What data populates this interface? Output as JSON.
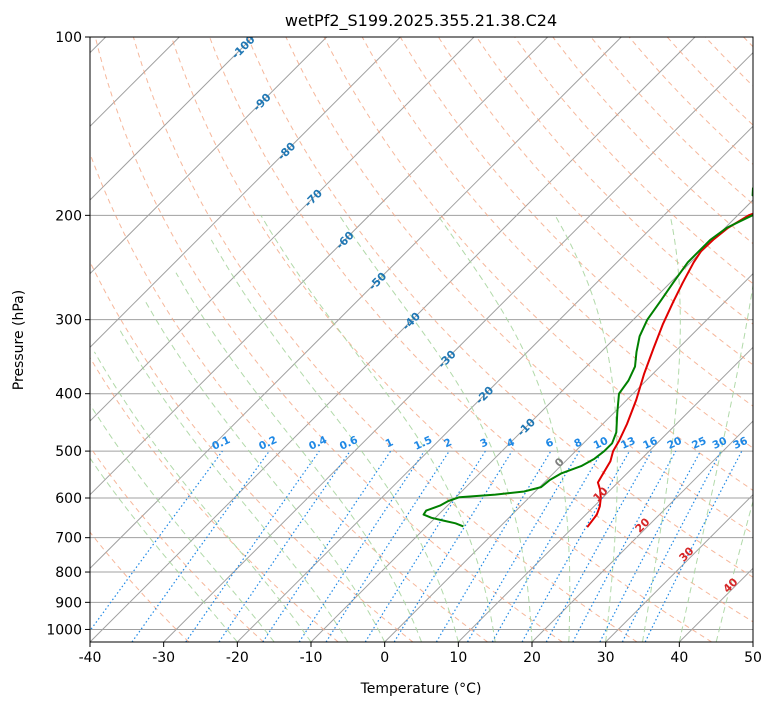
{
  "chart_data": {
    "type": "line",
    "title": "wetPf2_S199.2025.355.21.38.C24",
    "xlabel": "Temperature (°C)",
    "ylabel": "Pressure (hPa)",
    "xlim": [
      -40,
      50
    ],
    "ylim": [
      1050,
      100
    ],
    "x_ticks": [
      "-40",
      "-30",
      "-20",
      "-10",
      "0",
      "10",
      "20",
      "30",
      "40",
      "50"
    ],
    "y_ticks": [
      "100",
      "200",
      "300",
      "400",
      "500",
      "600",
      "700",
      "800",
      "900",
      "1000"
    ],
    "series": [
      {
        "name": "temperature",
        "color": "#e00000",
        "points": [
          [
            11.9,
            672
          ],
          [
            11.5,
            640
          ],
          [
            10.8,
            620
          ],
          [
            9.8,
            600
          ],
          [
            8.5,
            580
          ],
          [
            7.3,
            565
          ],
          [
            6.9,
            550
          ],
          [
            6.1,
            520
          ],
          [
            5.1,
            500
          ],
          [
            4.5,
            480
          ],
          [
            3.3,
            450
          ],
          [
            1.3,
            410
          ],
          [
            -1.2,
            370
          ],
          [
            -3.4,
            335
          ],
          [
            -5.4,
            305
          ],
          [
            -7.0,
            280
          ],
          [
            -8.3,
            260
          ],
          [
            -9.6,
            240
          ],
          [
            -10.1,
            230
          ],
          [
            -10.0,
            220
          ],
          [
            -9.6,
            210
          ],
          [
            -8.5,
            200
          ],
          [
            -7.0,
            195
          ],
          [
            -2.0,
            187
          ],
          [
            2.0,
            180
          ],
          [
            5.7,
            170
          ],
          [
            9.0,
            160
          ],
          [
            11.5,
            150
          ],
          [
            13.8,
            140
          ],
          [
            15.5,
            130
          ],
          [
            17.0,
            120
          ],
          [
            18.5,
            110
          ],
          [
            21.0,
            100
          ]
        ]
      },
      {
        "name": "dewpoint",
        "color": "#008000",
        "points": [
          [
            -5.0,
            670
          ],
          [
            -6.5,
            662
          ],
          [
            -8.5,
            655
          ],
          [
            -10.5,
            648
          ],
          [
            -12.0,
            640
          ],
          [
            -12.2,
            630
          ],
          [
            -11.0,
            618
          ],
          [
            -10.5,
            607
          ],
          [
            -9.5,
            598
          ],
          [
            -5.0,
            592
          ],
          [
            -1.5,
            585
          ],
          [
            0.2,
            575
          ],
          [
            0.4,
            560
          ],
          [
            1.1,
            545
          ],
          [
            2.8,
            530
          ],
          [
            3.6,
            515
          ],
          [
            3.9,
            500
          ],
          [
            3.9,
            485
          ],
          [
            3.0,
            465
          ],
          [
            0.4,
            430
          ],
          [
            -1.9,
            400
          ],
          [
            -2.4,
            380
          ],
          [
            -3.4,
            360
          ],
          [
            -5.2,
            340
          ],
          [
            -6.9,
            320
          ],
          [
            -8.1,
            300
          ],
          [
            -8.8,
            280
          ],
          [
            -9.6,
            260
          ],
          [
            -10.4,
            240
          ],
          [
            -10.4,
            220
          ],
          [
            -9.8,
            210
          ],
          [
            -8.0,
            200
          ],
          [
            -7.3,
            195
          ],
          [
            -8.4,
            190
          ],
          [
            -10.7,
            185
          ],
          [
            -11.6,
            180
          ],
          [
            -11.3,
            170
          ],
          [
            -11.3,
            160
          ],
          [
            -11.0,
            150
          ],
          [
            -10.0,
            140
          ],
          [
            -8.5,
            130
          ],
          [
            -6.5,
            120
          ],
          [
            -3.7,
            110
          ],
          [
            -1.0,
            100
          ]
        ]
      }
    ],
    "isotherm_labels": [
      "-100",
      "-90",
      "-80",
      "-70",
      "-60",
      "-50",
      "-40",
      "-30",
      "-20",
      "-10"
    ],
    "mixing_ratio_labels": [
      "0.1",
      "0.2",
      "0.4",
      "0.6",
      "1",
      "1.5",
      "2",
      "3",
      "4",
      "6",
      "8",
      "10",
      "13",
      "16",
      "20",
      "25",
      "30",
      "36"
    ],
    "moist_adiabat_labels": [
      "0",
      "10",
      "20",
      "30",
      "40"
    ],
    "colors": {
      "isotherm_label": "#1f77b4",
      "mixing_ratio": "#1e88e5",
      "moist_label": "#d62728",
      "moist_zero_label": "#7f7f7f",
      "dry_adiabat": "#f4a582",
      "moist_adiabat": "#a8d5a0",
      "grid": "#a0a0a0"
    }
  }
}
